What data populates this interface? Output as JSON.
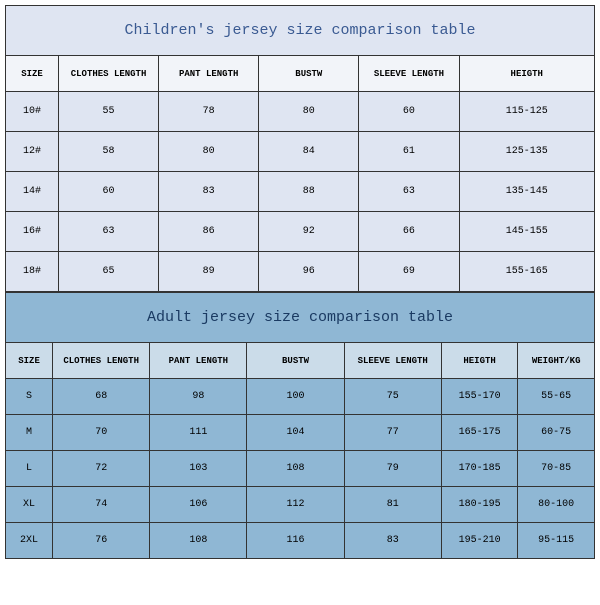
{
  "children": {
    "title": "Children's jersey size comparison table",
    "title_bg": "#dfe5f2",
    "title_color": "#3a5a92",
    "header_bg": "#f2f4f9",
    "row_bg": "#dfe5f2",
    "columns": [
      "SIZE",
      "CLOTHES LENGTH",
      "PANT LENGTH",
      "BUSTW",
      "SLEEVE LENGTH",
      "HEIGTH"
    ],
    "rows": [
      [
        "10#",
        "55",
        "78",
        "80",
        "60",
        "115-125"
      ],
      [
        "12#",
        "58",
        "80",
        "84",
        "61",
        "125-135"
      ],
      [
        "14#",
        "60",
        "83",
        "88",
        "63",
        "135-145"
      ],
      [
        "16#",
        "63",
        "86",
        "92",
        "66",
        "145-155"
      ],
      [
        "18#",
        "65",
        "89",
        "96",
        "69",
        "155-165"
      ]
    ]
  },
  "adult": {
    "title": "Adult jersey size comparison table",
    "title_bg": "#8fb7d4",
    "title_color": "#1a3a62",
    "header_bg": "#cbdce9",
    "row_bg": "#8fb7d4",
    "columns": [
      "SIZE",
      "CLOTHES LENGTH",
      "PANT LENGTH",
      "BUSTW",
      "SLEEVE LENGTH",
      "HEIGTH",
      "WEIGHT/KG"
    ],
    "rows": [
      [
        "S",
        "68",
        "98",
        "100",
        "75",
        "155-170",
        "55-65"
      ],
      [
        "M",
        "70",
        "111",
        "104",
        "77",
        "165-175",
        "60-75"
      ],
      [
        "L",
        "72",
        "103",
        "108",
        "79",
        "170-185",
        "70-85"
      ],
      [
        "XL",
        "74",
        "106",
        "112",
        "81",
        "180-195",
        "80-100"
      ],
      [
        "2XL",
        "76",
        "108",
        "116",
        "83",
        "195-210",
        "95-115"
      ]
    ]
  },
  "border_color": "#333333",
  "font_family": "Courier New"
}
